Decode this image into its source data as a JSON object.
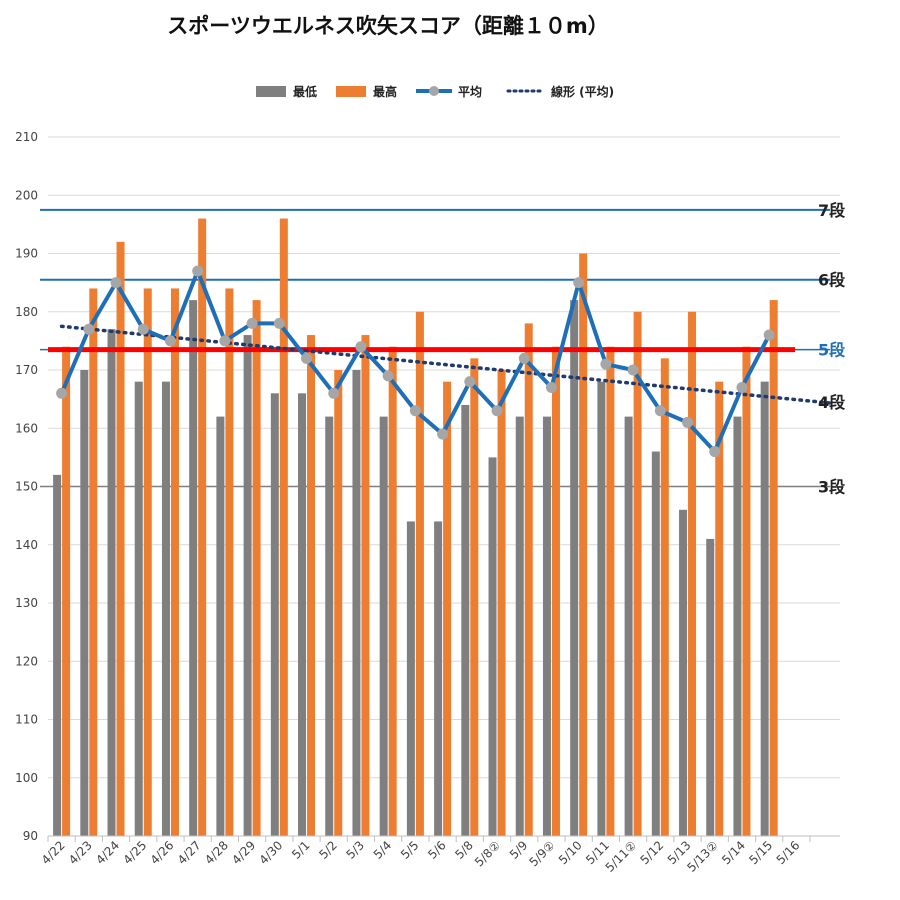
{
  "chart_data": {
    "type": "bar",
    "title": "スポーツウエルネス吹矢スコア（距離１０m）",
    "categories": [
      "4/22",
      "4/23",
      "4/24",
      "4/25",
      "4/26",
      "4/27",
      "4/28",
      "4/29",
      "4/30",
      "5/1",
      "5/2",
      "5/3",
      "5/4",
      "5/5",
      "5/6",
      "5/8",
      "5/8②",
      "5/9",
      "5/9②",
      "5/10",
      "5/11",
      "5/11②",
      "5/12",
      "5/13",
      "5/13②",
      "5/14",
      "5/15",
      "5/16"
    ],
    "series": [
      {
        "name": "最低",
        "kind": "bar",
        "color": "#7f7f7f",
        "values": [
          152,
          170,
          177,
          168,
          168,
          182,
          162,
          176,
          166,
          166,
          162,
          170,
          162,
          144,
          144,
          164,
          155,
          162,
          162,
          182,
          168,
          162,
          156,
          146,
          141,
          162,
          168,
          null
        ]
      },
      {
        "name": "最高",
        "kind": "bar",
        "color": "#ed7d31",
        "values": [
          174,
          184,
          192,
          184,
          184,
          196,
          184,
          182,
          196,
          176,
          170,
          176,
          174,
          180,
          168,
          172,
          170,
          178,
          174,
          190,
          174,
          180,
          172,
          180,
          168,
          174,
          182,
          null
        ]
      },
      {
        "name": "平均",
        "kind": "line",
        "color": "#1f6fb8",
        "marker_color": "#a6a6a6",
        "values": [
          166,
          177,
          185,
          177,
          175,
          187,
          175,
          178,
          178,
          172,
          166,
          174,
          169,
          163,
          159,
          168,
          163,
          172,
          167,
          185,
          171,
          170,
          163,
          161,
          156,
          167,
          176,
          null
        ]
      },
      {
        "name": "線形 (平均)",
        "kind": "trendline",
        "color": "#1f3a6e",
        "from": 177.5,
        "to": 164.3
      }
    ],
    "ylim": [
      90,
      210
    ],
    "yticks": [
      90,
      100,
      110,
      120,
      130,
      140,
      150,
      160,
      170,
      180,
      190,
      200,
      210
    ],
    "legend_position": "top",
    "grid": true,
    "reference_lines": [
      {
        "label": "7段",
        "value": 197.5,
        "color": "#1f6fb8",
        "label_color": "#222222",
        "width": 2
      },
      {
        "label": "6段",
        "value": 185.5,
        "color": "#1f6fb8",
        "label_color": "#222222",
        "width": 2
      },
      {
        "label": "5段",
        "value": 173.5,
        "color": "#1f6fb8",
        "label_color": "#1f6fb8",
        "width": 1.5
      },
      {
        "label": "4段",
        "value": 164.5,
        "color": null,
        "label_color": "#222222",
        "width": 0
      },
      {
        "label": "3段",
        "value": 150,
        "color": "#7f7f7f",
        "label_color": "#222222",
        "width": 1.5
      }
    ],
    "highlight_line": {
      "value": 173.5,
      "color": "#ff0000",
      "width": 5
    }
  }
}
